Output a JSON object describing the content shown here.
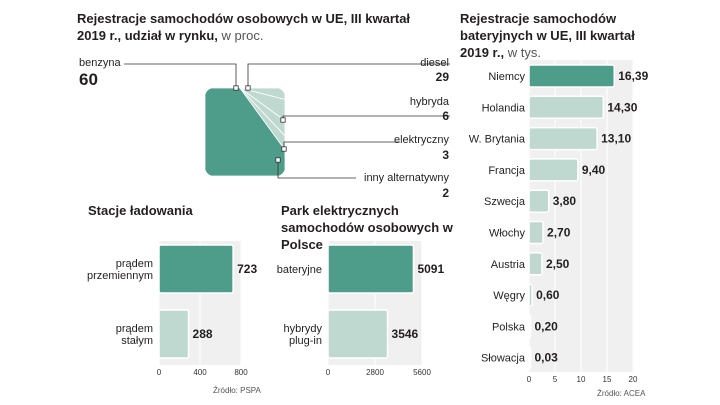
{
  "source_pspa": "Źródło: PSPA",
  "source_acea": "Źródło: ACEA",
  "chart_data": [
    {
      "type": "pie",
      "title": "Rejestracje samochodów osobowych w UE, III kwartał 2019 r., udział w rynku,",
      "unit": "w proc.",
      "slices": [
        {
          "label": "benzyna",
          "value": 60,
          "color": "#4e9c8a"
        },
        {
          "label": "diesel",
          "value": 29,
          "color": "#c0d9d0"
        },
        {
          "label": "hybryda",
          "value": 6,
          "color": "#c0d9d0"
        },
        {
          "label": "elektryczny",
          "value": 3,
          "color": "#c0d9d0"
        },
        {
          "label": "inny alternatywny",
          "value": 2,
          "color": "#c0d9d0"
        }
      ]
    },
    {
      "type": "bar",
      "orientation": "horizontal",
      "title": "Stacje ładowania",
      "categories": [
        "prądem przemiennym",
        "prądem stałym"
      ],
      "values": [
        723,
        288
      ],
      "value_labels": [
        "723",
        "288"
      ],
      "xlim": [
        0,
        800
      ],
      "ticks": [
        0,
        400,
        800
      ],
      "tick_labels": [
        "0",
        "400",
        "800"
      ],
      "colors": [
        "#4e9c8a",
        "#c0d9d0"
      ]
    },
    {
      "type": "bar",
      "orientation": "horizontal",
      "title": "Park elektrycznych samochodów osobowych w Polsce",
      "categories": [
        "bateryjne",
        "hybrydy plug-in"
      ],
      "values": [
        5091,
        3546
      ],
      "value_labels": [
        "5091",
        "3546"
      ],
      "xlim": [
        0,
        5600
      ],
      "ticks": [
        0,
        2800,
        5600
      ],
      "tick_labels": [
        "0",
        "2800",
        "5600"
      ],
      "colors": [
        "#4e9c8a",
        "#c0d9d0"
      ]
    },
    {
      "type": "bar",
      "orientation": "horizontal",
      "title": "Rejestracje samochodów bateryjnych w UE, III kwartał 2019 r.,",
      "unit": "w tys.",
      "categories": [
        "Niemcy",
        "Holandia",
        "W. Brytania",
        "Francja",
        "Szwecja",
        "Włochy",
        "Austria",
        "Węgry",
        "Polska",
        "Słowacja"
      ],
      "values": [
        16.39,
        14.3,
        13.1,
        9.4,
        3.8,
        2.7,
        2.5,
        0.6,
        0.2,
        0.03
      ],
      "value_labels": [
        "16,39",
        "14,30",
        "13,10",
        "9,40",
        "3,80",
        "2,70",
        "2,50",
        "0,60",
        "0,20",
        "0,03"
      ],
      "xlim": [
        0,
        20
      ],
      "ticks": [
        0,
        5,
        10,
        15,
        20
      ],
      "tick_labels": [
        "0",
        "5",
        "10",
        "15",
        "20"
      ],
      "colors": [
        "#4e9c8a",
        "#c0d9d0"
      ]
    }
  ]
}
